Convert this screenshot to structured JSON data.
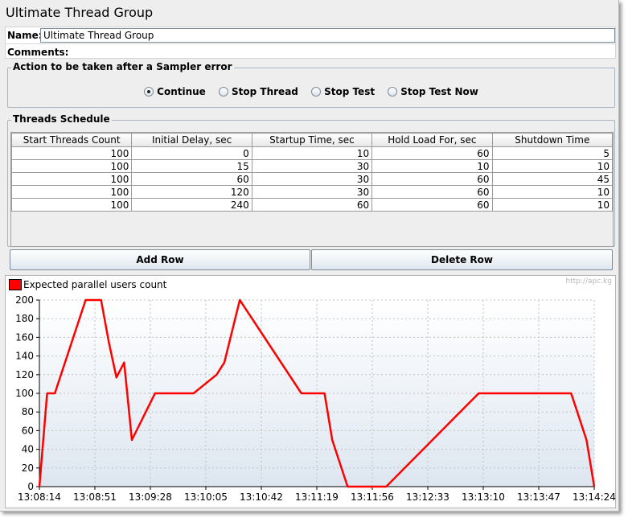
{
  "window": {
    "title": "Ultimate Thread Group"
  },
  "name_field": {
    "label": "Name:",
    "value": "Ultimate Thread Group"
  },
  "comments": {
    "label": "Comments:"
  },
  "sampler_error": {
    "title": "Action to be taken after a Sampler error",
    "options": [
      "Continue",
      "Stop Thread",
      "Stop Test",
      "Stop Test Now"
    ],
    "selected": "Continue"
  },
  "schedule": {
    "title": "Threads Schedule",
    "columns": [
      "Start Threads Count",
      "Initial Delay, sec",
      "Startup Time, sec",
      "Hold Load For, sec",
      "Shutdown Time"
    ],
    "rows": [
      [
        "100",
        "0",
        "10",
        "60",
        "5"
      ],
      [
        "100",
        "15",
        "30",
        "10",
        "10"
      ],
      [
        "100",
        "60",
        "30",
        "60",
        "45"
      ],
      [
        "100",
        "120",
        "30",
        "60",
        "10"
      ],
      [
        "100",
        "240",
        "60",
        "60",
        "10"
      ]
    ]
  },
  "buttons": {
    "add_row": "Add Row",
    "delete_row": "Delete Row"
  },
  "chart_watermark": "http://apc.kg",
  "chart_data": {
    "type": "line",
    "series": [
      {
        "name": "Expected parallel users count",
        "color": "#ff0000",
        "points": [
          [
            0,
            0
          ],
          [
            5,
            100
          ],
          [
            10,
            100
          ],
          [
            30,
            200
          ],
          [
            40,
            200
          ],
          [
            45,
            155
          ],
          [
            50,
            117
          ],
          [
            55,
            133
          ],
          [
            60,
            50
          ],
          [
            75,
            100
          ],
          [
            90,
            100
          ],
          [
            100,
            100
          ],
          [
            115,
            120
          ],
          [
            120,
            133
          ],
          [
            130,
            200
          ],
          [
            150,
            150
          ],
          [
            170,
            100
          ],
          [
            180,
            100
          ],
          [
            185,
            100
          ],
          [
            190,
            50
          ],
          [
            200,
            0
          ],
          [
            210,
            0
          ],
          [
            215,
            0
          ],
          [
            225,
            0
          ],
          [
            240,
            25
          ],
          [
            255,
            50
          ],
          [
            270,
            75
          ],
          [
            285,
            100
          ],
          [
            300,
            100
          ],
          [
            320,
            100
          ],
          [
            330,
            100
          ],
          [
            345,
            100
          ],
          [
            355,
            50
          ],
          [
            360,
            0
          ]
        ]
      }
    ],
    "x_tick_labels": [
      "13:08:14",
      "13:08:51",
      "13:09:28",
      "13:10:05",
      "13:10:42",
      "13:11:19",
      "13:11:56",
      "13:12:33",
      "13:13:10",
      "13:13:47",
      "13:14:24"
    ],
    "ylim": [
      0,
      200
    ],
    "y_ticks": [
      0,
      20,
      40,
      60,
      80,
      100,
      120,
      140,
      160,
      180,
      200
    ],
    "grid": true,
    "legend_position": "top-left"
  }
}
